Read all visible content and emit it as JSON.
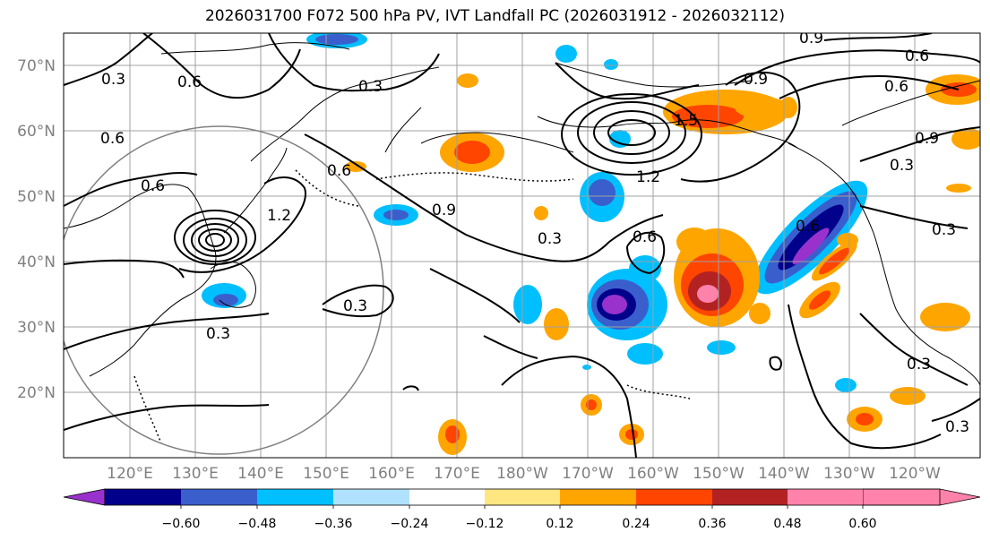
{
  "title": "2026031700 F072 500 hPa PV, IVT Landfall PC (2026031912 - 2026032112)",
  "lat_labels": [
    "70°N",
    "60°N",
    "50°N",
    "40°N",
    "30°N",
    "20°N"
  ],
  "lon_labels": [
    "120°E",
    "130°E",
    "140°E",
    "150°E",
    "160°E",
    "170°E",
    "180°W",
    "170°W",
    "160°W",
    "150°W",
    "140°W",
    "130°W",
    "120°W"
  ],
  "contour_labels": [
    "0.3",
    "0.6",
    "0.6",
    "0.9",
    "0.6",
    "0.3",
    "0.6",
    "0.9",
    "0.3",
    "1.2",
    "0.3",
    "0.3",
    "0.6",
    "0.9",
    "1.2",
    "1.5",
    "0.9",
    "0.6",
    "0.6",
    "0.3",
    "0.3",
    "0.3",
    "0.3",
    "0.6"
  ],
  "colorbar": {
    "ticks": [
      "−0.60",
      "−0.48",
      "−0.36",
      "−0.24",
      "−0.12",
      "0.12",
      "0.24",
      "0.36",
      "0.48",
      "0.60"
    ],
    "colors": [
      "#9932cc",
      "#00008b",
      "#3a5fcd",
      "#00bfff",
      "#b0e2ff",
      "#ffffff",
      "#ffe680",
      "#ffa500",
      "#ff4500",
      "#b22222",
      "#ff82ab"
    ]
  }
}
